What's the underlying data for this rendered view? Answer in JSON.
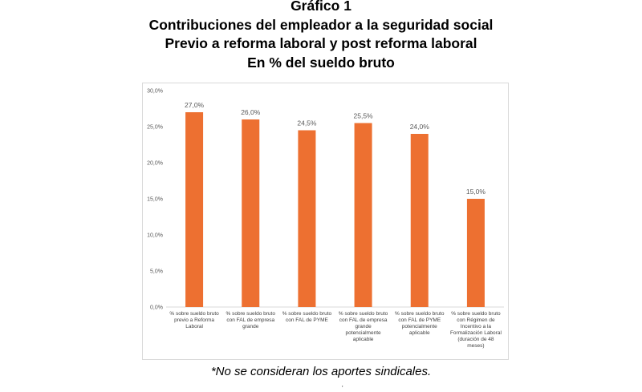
{
  "header": {
    "line1": "Gráfico 1",
    "line2": "Contribuciones del empleador a la seguridad social",
    "line3": "Previo a reforma laboral y post reforma laboral",
    "line4": "En % del sueldo bruto"
  },
  "footnote": "*No se consideran los aportes sindicales.",
  "bottom_mark": "'",
  "colors": {
    "bar": "#ED7031",
    "grid": "#d9d9d9",
    "text": "#595959"
  },
  "chart_data": {
    "type": "bar",
    "title": "Contribuciones del empleador a la seguridad social",
    "xlabel": "",
    "ylabel": "",
    "ylim": [
      0,
      30
    ],
    "yticks": [
      "0,0%",
      "5,0%",
      "10,0%",
      "15,0%",
      "20,0%",
      "25,0%",
      "30,0%"
    ],
    "ytick_values": [
      0,
      5,
      10,
      15,
      20,
      25,
      30
    ],
    "grid": false,
    "categories": [
      [
        "% sobre sueldo bruto",
        "previo a Reforma",
        "Laboral"
      ],
      [
        "% sobre sueldo bruto",
        "con FAL de empresa",
        "grande"
      ],
      [
        "% sobre sueldo bruto",
        "con FAL de PYME"
      ],
      [
        "% sobre sueldo bruto",
        "con FAL de empresa",
        "grande",
        "potencialmente",
        "aplicable"
      ],
      [
        "% sobre sueldo bruto",
        "con FAL de PYME",
        "potencialmente",
        "aplicable"
      ],
      [
        "% sobre sueldo bruto",
        "con Régimen de",
        "Incentivo a la",
        "Formalización Laboral",
        "(duración de 48",
        "meses)"
      ]
    ],
    "values": [
      27.0,
      26.0,
      24.5,
      25.5,
      24.0,
      15.0
    ],
    "data_labels": [
      "27,0%",
      "26,0%",
      "24,5%",
      "25,5%",
      "24,0%",
      "15,0%"
    ]
  }
}
